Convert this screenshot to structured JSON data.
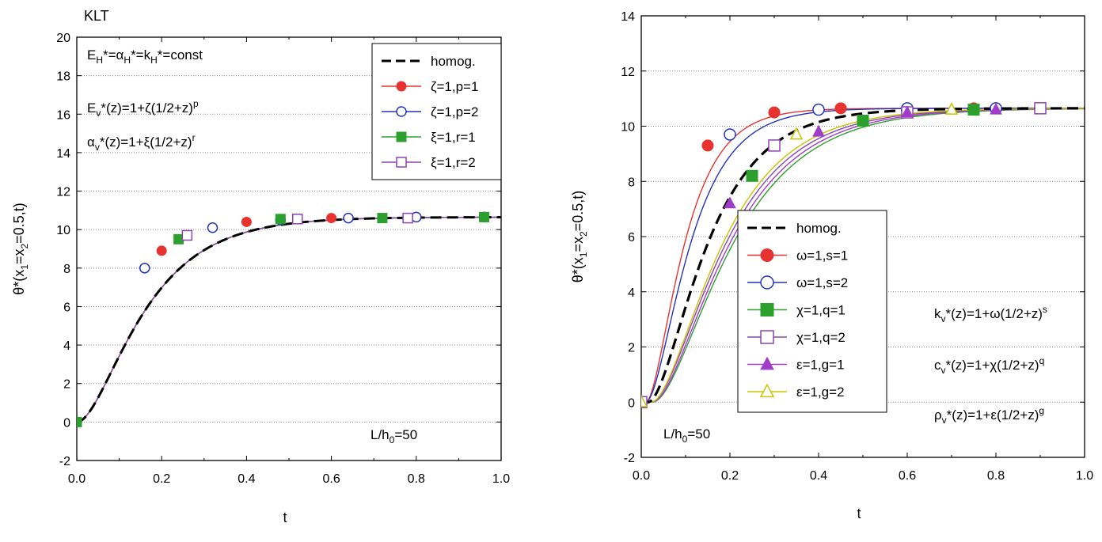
{
  "chart_data": [
    {
      "type": "line",
      "panel_label": "KLT",
      "xlabel": "t",
      "ylabel_parts": [
        "θ*(x",
        "1",
        "=x",
        "2",
        "=0.5,t)"
      ],
      "xlim": [
        0,
        1.0
      ],
      "ylim": [
        -2,
        20
      ],
      "xticks": [
        "0.0",
        "0.2",
        "0.4",
        "0.6",
        "0.8",
        "1.0"
      ],
      "yticks": [
        "-2",
        "0",
        "2",
        "4",
        "6",
        "8",
        "10",
        "12",
        "14",
        "16",
        "18",
        "20"
      ],
      "grid": "horizontal-dotted",
      "curve": {
        "plateau": 10.65,
        "time_constant": 0.118,
        "shape": "saturation"
      },
      "annotations": [
        {
          "id": "eH",
          "parts": [
            "E",
            "H",
            "*=α",
            "H",
            "*=k",
            "H",
            "*=const"
          ]
        },
        {
          "id": "ev",
          "parts": [
            "E",
            "v",
            "*(z)=1+ζ(1/2+z)",
            "p"
          ]
        },
        {
          "id": "av",
          "parts": [
            "α",
            "v",
            "*(z)=1+ξ(1/2+z)",
            "r"
          ]
        },
        {
          "id": "lh",
          "parts": [
            "L/h",
            "0",
            "=50"
          ]
        }
      ],
      "legend_position": "top-right",
      "series": [
        {
          "name": "homog.",
          "color": "#000000",
          "dash": true,
          "marker": "none"
        },
        {
          "name": "ζ=1,p=1",
          "color": "#e8322f",
          "marker": "filled-circle",
          "x": [
            0.0,
            0.2,
            0.4,
            0.6,
            0.8
          ],
          "y": [
            0.0,
            8.9,
            10.4,
            10.6,
            10.65
          ]
        },
        {
          "name": "ζ=1,p=2",
          "color": "#2233bb",
          "marker": "open-circle",
          "x": [
            0.16,
            0.32,
            0.48,
            0.64,
            0.8,
            0.96
          ],
          "y": [
            8.0,
            10.1,
            10.5,
            10.6,
            10.65,
            10.65
          ]
        },
        {
          "name": "ξ=1,r=1",
          "color": "#2ca02c",
          "marker": "filled-square",
          "x": [
            0.0,
            0.24,
            0.48,
            0.72,
            0.96
          ],
          "y": [
            0.0,
            9.5,
            10.55,
            10.6,
            10.65
          ]
        },
        {
          "name": "ξ=1,r=2",
          "color": "#8e44ad",
          "marker": "open-square",
          "x": [
            0.26,
            0.52,
            0.78
          ],
          "y": [
            9.7,
            10.55,
            10.6
          ]
        }
      ]
    },
    {
      "type": "line",
      "xlabel": "t",
      "ylabel_parts": [
        "θ*(x",
        "1",
        "=x",
        "2",
        "=0.5,t)"
      ],
      "xlim": [
        0,
        1.0
      ],
      "ylim": [
        -2,
        14
      ],
      "xticks": [
        "0.0",
        "0.2",
        "0.4",
        "0.6",
        "0.8",
        "1.0"
      ],
      "yticks": [
        "-2",
        "0",
        "2",
        "4",
        "6",
        "8",
        "10",
        "12",
        "14"
      ],
      "grid": "horizontal-dotted",
      "annotations": [
        {
          "id": "kv",
          "parts": [
            "k",
            "v",
            "*(z)=1+ω(1/2+z)",
            "s"
          ]
        },
        {
          "id": "cv",
          "parts": [
            "c",
            "v",
            "*(z)=1+χ(1/2+z)",
            "q"
          ]
        },
        {
          "id": "rv",
          "parts": [
            "ρ",
            "v",
            "*(z)=1+ε(1/2+z)",
            "g"
          ]
        },
        {
          "id": "lh",
          "parts": [
            "L/h",
            "0",
            "=50"
          ]
        }
      ],
      "legend_position": "center-left",
      "series": [
        {
          "name": "homog.",
          "color": "#000000",
          "dash": true,
          "marker": "none",
          "curve": {
            "plateau": 10.65,
            "time_constant": 0.1,
            "delay": 0.015
          }
        },
        {
          "name": "ω=1,s=1",
          "color": "#e8322f",
          "marker": "filled-circle",
          "curve": {
            "plateau": 10.65,
            "time_constant": 0.065,
            "delay": 0.01
          },
          "x": [
            0.0,
            0.15,
            0.3,
            0.45,
            0.6,
            0.75,
            0.9
          ],
          "y": [
            0.0,
            9.3,
            10.5,
            10.65,
            10.65,
            10.65,
            10.65
          ]
        },
        {
          "name": "ω=1,s=2",
          "color": "#2233bb",
          "marker": "open-circle",
          "curve": {
            "plateau": 10.65,
            "time_constant": 0.075,
            "delay": 0.01
          },
          "x": [
            0.0,
            0.2,
            0.4,
            0.6,
            0.8
          ],
          "y": [
            0.0,
            9.7,
            10.6,
            10.65,
            10.65
          ]
        },
        {
          "name": "χ=1,q=1",
          "color": "#2ca02c",
          "marker": "filled-square",
          "curve": {
            "plateau": 10.65,
            "time_constant": 0.135,
            "delay": 0.025
          },
          "x": [
            0.0,
            0.25,
            0.5,
            0.75
          ],
          "y": [
            0.0,
            8.2,
            10.2,
            10.6
          ]
        },
        {
          "name": "χ=1,q=2",
          "color": "#8e44ad",
          "marker": "open-square",
          "curve": {
            "plateau": 10.65,
            "time_constant": 0.125,
            "delay": 0.022
          },
          "x": [
            0.0,
            0.3,
            0.6,
            0.9
          ],
          "y": [
            0.0,
            9.3,
            10.5,
            10.65
          ]
        },
        {
          "name": "ε=1,g=1",
          "color": "#a03cc8",
          "marker": "filled-triangle",
          "curve": {
            "plateau": 10.65,
            "time_constant": 0.13,
            "delay": 0.024
          },
          "x": [
            0.0,
            0.2,
            0.4,
            0.6,
            0.8
          ],
          "y": [
            0.0,
            7.2,
            9.8,
            10.5,
            10.6
          ]
        },
        {
          "name": "ε=1,g=2",
          "color": "#c9c400",
          "marker": "open-triangle",
          "curve": {
            "plateau": 10.65,
            "time_constant": 0.12,
            "delay": 0.022
          },
          "x": [
            0.0,
            0.35,
            0.7
          ],
          "y": [
            0.0,
            9.7,
            10.6
          ]
        }
      ]
    }
  ]
}
